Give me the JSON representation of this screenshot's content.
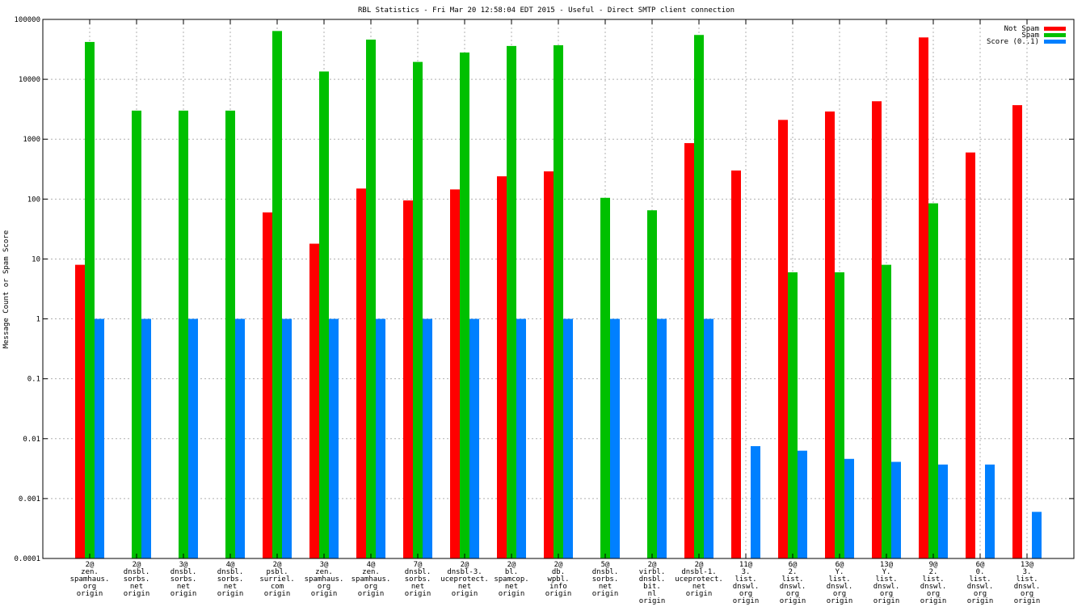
{
  "chart_data": {
    "type": "bar",
    "title": "RBL Statistics - Fri Mar 20 12:58:04 EDT 2015 - Useful - Direct SMTP client connection",
    "ylabel": "Message Count or Spam Score",
    "xlabel": "",
    "yscale": "log",
    "ylim": [
      0.0001,
      100000
    ],
    "yticks": [
      {
        "value": 0.0001,
        "label": "0.0001"
      },
      {
        "value": 0.001,
        "label": "0.001"
      },
      {
        "value": 0.01,
        "label": "0.01"
      },
      {
        "value": 0.1,
        "label": "0.1"
      },
      {
        "value": 1,
        "label": "1"
      },
      {
        "value": 10,
        "label": "10"
      },
      {
        "value": 100,
        "label": "100"
      },
      {
        "value": 1000,
        "label": "1000"
      },
      {
        "value": 10000,
        "label": "10000"
      },
      {
        "value": 100000,
        "label": "100000"
      }
    ],
    "legend_position": "top-right",
    "categories": [
      [
        "2@",
        "zen.",
        "spamhaus.",
        "org",
        "origin"
      ],
      [
        "2@",
        "dnsbl.",
        "sorbs.",
        "net",
        "origin"
      ],
      [
        "3@",
        "dnsbl.",
        "sorbs.",
        "net",
        "origin"
      ],
      [
        "4@",
        "dnsbl.",
        "sorbs.",
        "net",
        "origin"
      ],
      [
        "2@",
        "psbl.",
        "surriel.",
        "com",
        "origin"
      ],
      [
        "3@",
        "zen.",
        "spamhaus.",
        "org",
        "origin"
      ],
      [
        "4@",
        "zen.",
        "spamhaus.",
        "org",
        "origin"
      ],
      [
        "7@",
        "dnsbl.",
        "sorbs.",
        "net",
        "origin"
      ],
      [
        "2@",
        "dnsbl-3.",
        "uceprotect.",
        "net",
        "origin"
      ],
      [
        "2@",
        "bl.",
        "spamcop.",
        "net",
        "origin"
      ],
      [
        "2@",
        "db.",
        "wpbl.",
        "info",
        "origin"
      ],
      [
        "5@",
        "dnsbl.",
        "sorbs.",
        "net",
        "origin"
      ],
      [
        "2@",
        "virbl.",
        "dnsbl.",
        "bit.",
        "nl",
        "origin"
      ],
      [
        "2@",
        "dnsbl-1.",
        "uceprotect.",
        "net",
        "origin"
      ],
      [
        "11@",
        "3.",
        "list.",
        "dnswl.",
        "org",
        "origin"
      ],
      [
        "6@",
        "2.",
        "list.",
        "dnswl.",
        "org",
        "origin"
      ],
      [
        "6@",
        "Y.",
        "list.",
        "dnswl.",
        "org",
        "origin"
      ],
      [
        "13@",
        "Y.",
        "list.",
        "dnswl.",
        "org",
        "origin"
      ],
      [
        "9@",
        "2.",
        "list.",
        "dnswl.",
        "org",
        "origin"
      ],
      [
        "6@",
        "0.",
        "list.",
        "dnswl.",
        "org",
        "origin"
      ],
      [
        "13@",
        "3.",
        "list.",
        "dnswl.",
        "org",
        "origin"
      ]
    ],
    "series": [
      {
        "name": "Not Spam",
        "color": "#ff0000",
        "values": [
          8,
          null,
          null,
          null,
          60,
          18,
          150,
          95,
          145,
          240,
          290,
          null,
          null,
          860,
          300,
          2100,
          2900,
          4300,
          50000,
          600,
          3700
        ]
      },
      {
        "name": "Spam",
        "color": "#00c000",
        "values": [
          42000,
          3000,
          3000,
          3000,
          64000,
          13500,
          46000,
          19500,
          28000,
          36000,
          37000,
          105,
          65,
          55000,
          null,
          6,
          6,
          8,
          85,
          null,
          null
        ]
      },
      {
        "name": "Score (0..1)",
        "color": "#0080ff",
        "values": [
          1,
          1,
          1,
          1,
          1,
          1,
          1,
          1,
          1,
          1,
          1,
          1,
          1,
          1,
          0.0075,
          0.0063,
          0.0046,
          0.0041,
          0.0037,
          0.0037,
          0.0006
        ]
      }
    ]
  }
}
